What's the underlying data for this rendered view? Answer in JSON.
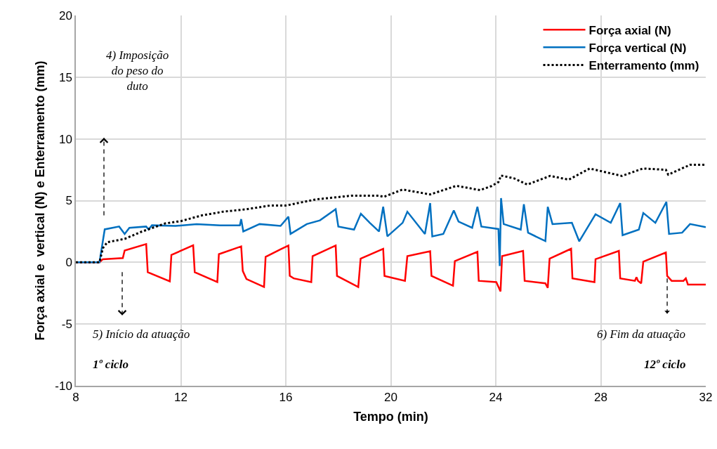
{
  "chart_data": {
    "type": "line",
    "xlabel": "Tempo (min)",
    "ylabel": "Força axial e  vertical (N) e Enterramento (mm)",
    "xlim": [
      8,
      32
    ],
    "xticks": [
      8,
      12,
      16,
      20,
      24,
      28,
      32
    ],
    "ylim": [
      -10,
      20
    ],
    "yticks": [
      -10,
      -5,
      0,
      5,
      10,
      15,
      20
    ],
    "grid": true,
    "legend": "top right",
    "series": [
      {
        "name": "Força axial (N)",
        "color": "#ff0000",
        "line_style": "solid",
        "x": [
          8,
          8.9,
          9.03,
          9.79,
          9.86,
          10.68,
          10.74,
          11.58,
          11.64,
          12.47,
          12.53,
          13.39,
          13.45,
          14.3,
          14.36,
          14.5,
          15.17,
          15.23,
          15.81,
          16.1,
          16.15,
          16.3,
          16.97,
          17.02,
          17.9,
          17.95,
          18.76,
          18.85,
          19.71,
          19.76,
          20.54,
          20.63,
          21.5,
          21.55,
          22.37,
          22.44,
          23.3,
          23.35,
          24.02,
          24.18,
          24.24,
          25.04,
          25.1,
          25.89,
          25.98,
          26.05,
          26.87,
          26.92,
          27.76,
          27.8,
          28.69,
          28.74,
          29.3,
          29.36,
          29.42,
          29.54,
          29.62,
          30.48,
          30.53,
          30.7,
          31.15,
          31.24,
          31.32,
          32
        ],
        "values": [
          0,
          0,
          0.25,
          0.35,
          0.96,
          1.48,
          -0.8,
          -1.54,
          0.6,
          1.38,
          -0.8,
          -1.6,
          0.66,
          1.29,
          -0.7,
          -1.35,
          -1.99,
          0.44,
          1.06,
          1.36,
          -1.1,
          -1.3,
          -1.6,
          0.5,
          1.36,
          -1.1,
          -2.0,
          0.3,
          1.1,
          -1.1,
          -1.5,
          0.5,
          0.9,
          -1.1,
          -1.9,
          0.1,
          0.85,
          -1.5,
          -1.6,
          -2.36,
          0.5,
          0.93,
          -1.5,
          -1.7,
          -2.07,
          0.3,
          1.1,
          -1.3,
          -1.6,
          0.25,
          0.93,
          -1.3,
          -1.5,
          -1.2,
          -1.5,
          -1.7,
          0.06,
          0.8,
          -1.1,
          -1.5,
          -1.5,
          -1.3,
          -1.8,
          -1.8
        ]
      },
      {
        "name": "Força vertical (N)",
        "color": "#0070c0",
        "line_style": "solid",
        "x": [
          8,
          8.9,
          9.1,
          9.65,
          9.86,
          10.04,
          10.68,
          10.77,
          10.9,
          11.8,
          12.6,
          13.5,
          14.25,
          14.3,
          14.38,
          15.0,
          15.8,
          16.1,
          16.18,
          16.8,
          17.3,
          17.9,
          18.0,
          18.6,
          18.86,
          19.2,
          19.55,
          19.71,
          19.87,
          20.45,
          20.63,
          21.3,
          21.5,
          21.58,
          22.0,
          22.4,
          22.58,
          23.1,
          23.3,
          23.45,
          24.1,
          24.15,
          24.2,
          24.3,
          24.95,
          25.07,
          25.23,
          25.89,
          25.98,
          26.16,
          26.9,
          27.18,
          27.8,
          28.38,
          28.74,
          28.83,
          29.45,
          29.62,
          30.08,
          30.5,
          30.6,
          31.1,
          31.4,
          32
        ],
        "values": [
          0,
          0,
          2.67,
          2.9,
          2.3,
          2.8,
          2.9,
          2.67,
          3.0,
          2.95,
          3.1,
          3.0,
          3.0,
          3.5,
          2.5,
          3.1,
          2.95,
          3.7,
          2.3,
          3.1,
          3.4,
          4.3,
          2.9,
          2.65,
          3.94,
          3.2,
          2.5,
          4.5,
          2.1,
          3.2,
          4.1,
          2.3,
          4.8,
          2.1,
          2.3,
          4.2,
          3.3,
          2.8,
          4.5,
          2.9,
          2.7,
          -0.3,
          5.2,
          3.1,
          2.65,
          4.7,
          2.4,
          1.72,
          4.5,
          3.1,
          3.2,
          1.7,
          3.9,
          3.2,
          4.8,
          2.2,
          2.65,
          4.0,
          3.2,
          4.9,
          2.3,
          2.4,
          3.1,
          2.85
        ]
      },
      {
        "name": "Enterramento (mm)",
        "color": "#000000",
        "line_style": "dotted",
        "x": [
          8,
          8.9,
          9.03,
          9.2,
          9.86,
          10.5,
          11.4,
          12.0,
          12.8,
          13.6,
          14.5,
          15.4,
          16.0,
          17.15,
          18.5,
          19.55,
          19.73,
          20.45,
          21.5,
          22.5,
          23.4,
          23.84,
          24.1,
          24.2,
          24.7,
          25.2,
          26.07,
          26.78,
          27.58,
          28.8,
          29.6,
          30.48,
          30.57,
          31.4,
          32
        ],
        "values": [
          0,
          0,
          1.15,
          1.63,
          1.9,
          2.48,
          3.15,
          3.34,
          3.8,
          4.1,
          4.3,
          4.6,
          4.6,
          5.1,
          5.4,
          5.4,
          5.3,
          5.9,
          5.5,
          6.2,
          5.85,
          6.18,
          6.5,
          7.03,
          6.8,
          6.3,
          7.0,
          6.7,
          7.6,
          7.0,
          7.6,
          7.5,
          7.1,
          7.9,
          7.9
        ]
      }
    ],
    "annotations": [
      "4) Imposição\ndo peso do\nduto",
      "5) Início da atuação",
      "1º ciclo",
      {
        "text": "6) Fim da atuação",
        "x": 30.53,
        "y": -1.1
      },
      "12º ciclo"
    ]
  }
}
